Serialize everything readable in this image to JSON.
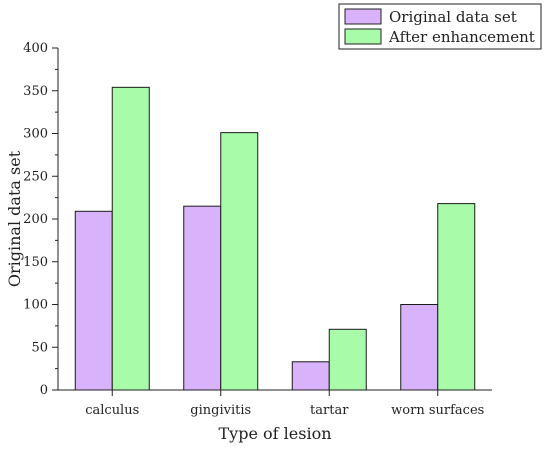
{
  "chart_data": {
    "type": "bar",
    "title": "",
    "xlabel": "Type of lesion",
    "ylabel": "Original data set",
    "categories": [
      "calculus",
      "gingivitis",
      "tartar",
      "worn surfaces"
    ],
    "series": [
      {
        "name": "Original data set",
        "values": [
          209,
          215,
          33,
          100
        ],
        "color": "#d8b2fa"
      },
      {
        "name": "After enhancement",
        "values": [
          354,
          301,
          71,
          218
        ],
        "color": "#a8fba8"
      }
    ],
    "ylim": [
      0,
      400
    ],
    "yticks": [
      0,
      50,
      100,
      150,
      200,
      250,
      300,
      350,
      400
    ],
    "grid": false,
    "legend_position": "top-right",
    "bar_edge_color": "#1a1a1a"
  }
}
